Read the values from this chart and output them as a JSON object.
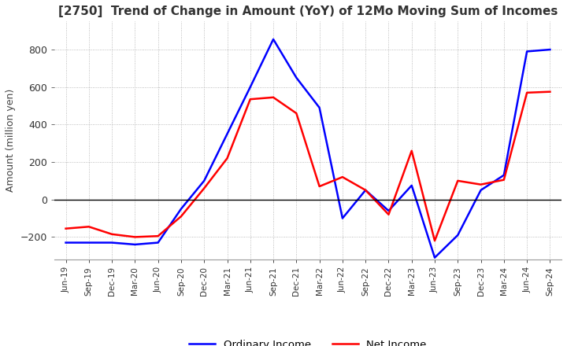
{
  "title": "[2750]  Trend of Change in Amount (YoY) of 12Mo Moving Sum of Incomes",
  "ylabel": "Amount (million yen)",
  "ylim": [
    -320,
    950
  ],
  "yticks": [
    -200,
    0,
    200,
    400,
    600,
    800
  ],
  "background_color": "#ffffff",
  "grid_color": "#aaaaaa",
  "x_labels": [
    "Jun-19",
    "Sep-19",
    "Dec-19",
    "Mar-20",
    "Jun-20",
    "Sep-20",
    "Dec-20",
    "Mar-21",
    "Jun-21",
    "Sep-21",
    "Dec-21",
    "Mar-22",
    "Jun-22",
    "Sep-22",
    "Dec-22",
    "Mar-23",
    "Jun-23",
    "Sep-23",
    "Dec-23",
    "Mar-24",
    "Jun-24",
    "Sep-24"
  ],
  "ordinary_income": [
    -230,
    -230,
    -230,
    -240,
    -230,
    -50,
    100,
    350,
    600,
    855,
    650,
    490,
    -100,
    50,
    -60,
    75,
    -310,
    -190,
    50,
    130,
    790,
    800
  ],
  "net_income": [
    -155,
    -145,
    -185,
    -200,
    -195,
    -90,
    60,
    220,
    535,
    545,
    460,
    70,
    120,
    50,
    -80,
    260,
    -220,
    100,
    80,
    105,
    570,
    575
  ],
  "ordinary_color": "#0000ff",
  "net_color": "#ff0000",
  "legend_labels": [
    "Ordinary Income",
    "Net Income"
  ]
}
